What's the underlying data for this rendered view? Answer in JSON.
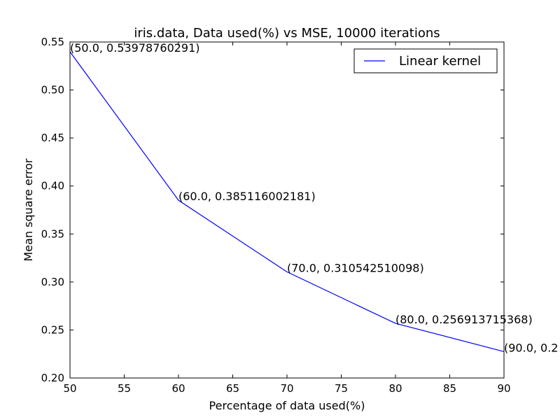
{
  "chart_data": {
    "type": "line",
    "title": "iris.data, Data used(%) vs MSE, 10000 iterations",
    "xlabel": "Percentage of data used(%)",
    "ylabel": "Mean square error",
    "xlim": [
      50,
      90
    ],
    "ylim": [
      0.2,
      0.55
    ],
    "xticks": [
      "50",
      "55",
      "60",
      "65",
      "70",
      "75",
      "80",
      "85",
      "90"
    ],
    "yticks": [
      "0.20",
      "0.25",
      "0.30",
      "0.35",
      "0.40",
      "0.45",
      "0.50",
      "0.55"
    ],
    "grid": false,
    "legend_position": "top-right",
    "series": [
      {
        "name": "Linear kernel",
        "color": "#0000ff",
        "x": [
          50,
          60,
          70,
          80,
          90
        ],
        "y": [
          0.53978760291,
          0.385116002181,
          0.310542510098,
          0.256913715368,
          0.2275
        ]
      }
    ],
    "annotations": [
      "(50.0, 0.53978760291)",
      "(60.0, 0.385116002181)",
      "(70.0, 0.310542510098)",
      "(80.0, 0.256913715368)",
      "(90.0, 0.2"
    ]
  }
}
